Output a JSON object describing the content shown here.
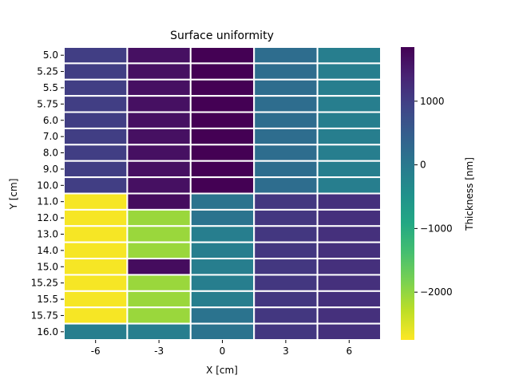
{
  "chart_data": {
    "type": "heatmap",
    "title": "Surface uniformity",
    "xlabel": "X [cm]",
    "ylabel": "Y [cm]",
    "colorbar_label": "Thickness [nm]",
    "colormap": "viridis_r",
    "vmin": -2750,
    "vmax": 1850,
    "colorbar_ticks": [
      1000,
      0,
      -1000,
      -2000
    ],
    "colorbar_tick_labels": [
      "1000",
      "0",
      "−1000",
      "−2000"
    ],
    "x_categories": [
      "-6",
      "-3",
      "0",
      "3",
      "6"
    ],
    "y_categories": [
      "5.0",
      "5.25",
      "5.5",
      "5.75",
      "6.0",
      "7.0",
      "8.0",
      "9.0",
      "10.0",
      "11.0",
      "12.0",
      "13.0",
      "14.0",
      "15.0",
      "15.25",
      "15.5",
      "15.75",
      "16.0"
    ],
    "values": [
      [
        1000,
        1650,
        1850,
        200,
        -100
      ],
      [
        1000,
        1650,
        1850,
        200,
        -100
      ],
      [
        1000,
        1650,
        1850,
        200,
        -100
      ],
      [
        1000,
        1650,
        1850,
        200,
        -100
      ],
      [
        1000,
        1650,
        1850,
        200,
        -100
      ],
      [
        1000,
        1650,
        1850,
        200,
        -100
      ],
      [
        1000,
        1650,
        1850,
        200,
        -100
      ],
      [
        1000,
        1650,
        1850,
        200,
        -100
      ],
      [
        1000,
        1650,
        1850,
        200,
        -100
      ],
      [
        -2700,
        1700,
        100,
        1100,
        1200
      ],
      [
        -2700,
        -2050,
        100,
        1100,
        1200
      ],
      [
        -2700,
        -2050,
        -100,
        1100,
        1200
      ],
      [
        -2700,
        -2050,
        -100,
        1100,
        1200
      ],
      [
        -2700,
        1700,
        -100,
        1100,
        1200
      ],
      [
        -2700,
        -2050,
        -100,
        1100,
        1200
      ],
      [
        -2700,
        -2050,
        -100,
        1100,
        1200
      ],
      [
        -2700,
        -2050,
        100,
        1100,
        1200
      ],
      [
        -100,
        -100,
        100,
        1100,
        1200
      ]
    ]
  }
}
